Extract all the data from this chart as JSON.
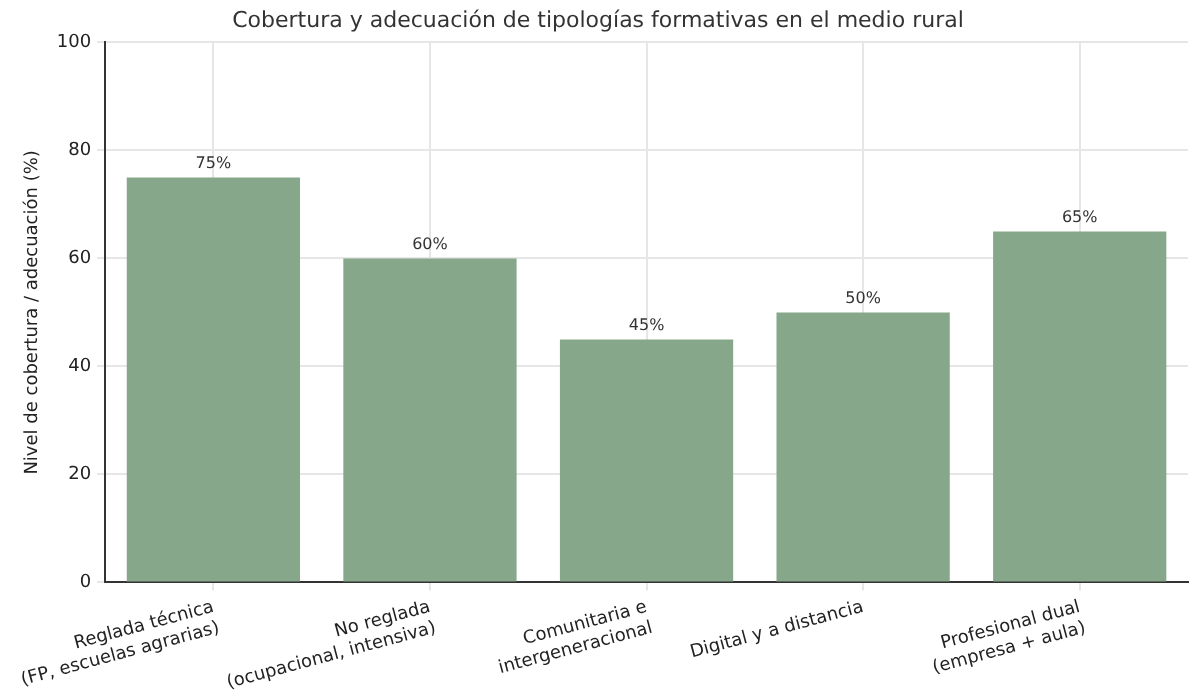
{
  "chart_data": {
    "type": "bar",
    "title": "Cobertura y adecuación de tipologías formativas en el medio rural",
    "ylabel": "Nivel de cobertura / adecuación (%)",
    "categories": [
      "Reglada técnica\n(FP, escuelas agrarias)",
      "No reglada\n(ocupacional, intensiva)",
      "Comunitaria e\nintergeneracional",
      "Digital y a distancia",
      "Profesional dual\n(empresa + aula)"
    ],
    "values": [
      75,
      60,
      45,
      50,
      65
    ],
    "value_labels": [
      "75%",
      "60%",
      "45%",
      "50%",
      "65%"
    ],
    "color": "#86a789",
    "ylim": [
      0,
      100
    ],
    "yticks": [
      0,
      20,
      40,
      60,
      80,
      100
    ],
    "grid": true,
    "legend": false
  }
}
